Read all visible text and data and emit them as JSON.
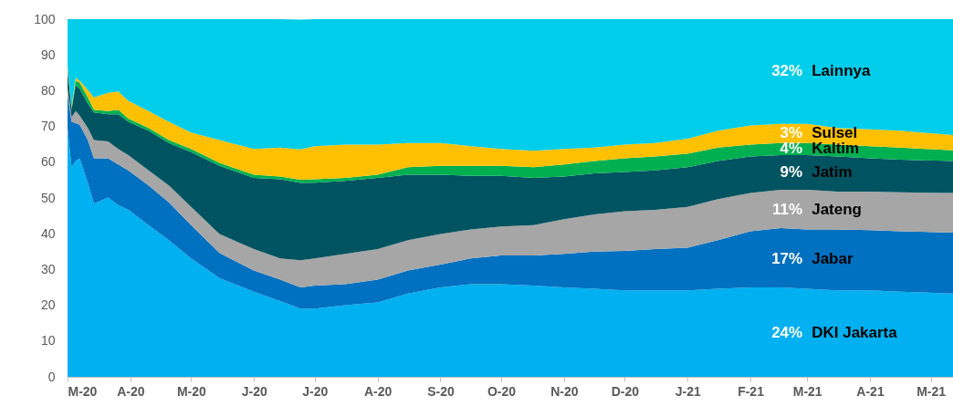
{
  "chart_data": {
    "type": "area",
    "stacked": true,
    "x": [
      "2020-03-01",
      "2020-03-03",
      "2020-03-05",
      "2020-03-07",
      "2020-03-11",
      "2020-03-14",
      "2020-03-21",
      "2020-03-26",
      "2020-03-31",
      "2020-04-10",
      "2020-04-20",
      "2020-05-01",
      "2020-05-15",
      "2020-06-01",
      "2020-06-14",
      "2020-06-24",
      "2020-07-01",
      "2020-07-16",
      "2020-08-01",
      "2020-08-16",
      "2020-09-01",
      "2020-09-16",
      "2020-10-01",
      "2020-10-17",
      "2020-11-01",
      "2020-11-16",
      "2020-12-01",
      "2020-12-16",
      "2021-01-01",
      "2021-01-16",
      "2021-02-01",
      "2021-02-16",
      "2021-03-01",
      "2021-03-16",
      "2021-04-01",
      "2021-04-16",
      "2021-05-12"
    ],
    "series": [
      {
        "name": "DKI Jakarta",
        "color": "#00b0f0",
        "values": [
          69.6,
          58.6,
          60.3,
          61.1,
          54.3,
          48.4,
          50.1,
          48,
          46.7,
          42.4,
          38.2,
          33.1,
          27.6,
          23.8,
          21.2,
          19.1,
          19.1,
          20,
          20.8,
          23.3,
          25,
          25.9,
          25.9,
          25.5,
          25,
          24.6,
          24.2,
          24.2,
          24.2,
          24.6,
          25,
          25,
          24.6,
          24.2,
          24.2,
          23.8,
          23.3
        ]
      },
      {
        "name": "Jabar",
        "color": "#0070c0",
        "values": [
          9.4,
          12.7,
          10.6,
          9.4,
          11.9,
          12.7,
          11,
          11.4,
          11,
          11.1,
          10.6,
          9.3,
          7,
          5.9,
          6,
          5.9,
          6.4,
          5.9,
          6.4,
          6.4,
          6.4,
          7.2,
          8,
          8.4,
          9.4,
          10.4,
          11,
          11.5,
          11.9,
          13.6,
          15.7,
          16.6,
          16.6,
          17,
          16.8,
          16.9,
          17
        ]
      },
      {
        "name": "Jateng",
        "color": "#a6a6a6",
        "values": [
          1.6,
          1.3,
          3.4,
          2.5,
          3.4,
          5.1,
          4.7,
          4.3,
          4.3,
          4.2,
          4.7,
          5.1,
          5.3,
          6,
          5.9,
          7.6,
          7.6,
          8.5,
          8.5,
          8.5,
          8.5,
          8.1,
          8.1,
          8.5,
          9.7,
          10.4,
          11.1,
          11,
          11.4,
          11.5,
          10.7,
          10.7,
          11.1,
          10.6,
          10.8,
          10.9,
          11.1
        ]
      },
      {
        "name": "Jatim",
        "color": "#005360",
        "values": [
          5.1,
          2.1,
          7.2,
          7.6,
          6.8,
          7.7,
          7.6,
          9.7,
          9.3,
          11.1,
          11.9,
          15.3,
          19.1,
          19.9,
          22.1,
          21.6,
          21.2,
          20.4,
          19.9,
          18.3,
          16.6,
          15,
          14.2,
          13.2,
          11.9,
          11.5,
          11,
          11,
          11.1,
          10.6,
          10.2,
          9.7,
          9.7,
          9.8,
          9.3,
          9.1,
          8.9
        ]
      },
      {
        "name": "Kaltim",
        "color": "#00b050",
        "values": [
          0.5,
          0.4,
          1.3,
          1.7,
          1.7,
          0.8,
          0.9,
          1.3,
          0.9,
          0.8,
          0.8,
          0.9,
          0.8,
          0.9,
          0.8,
          0.9,
          0.9,
          0.8,
          0.9,
          2.1,
          2.5,
          2.8,
          2.8,
          3,
          3.4,
          3.4,
          3.8,
          3.9,
          3.8,
          3.8,
          3.3,
          3.4,
          3.4,
          3.3,
          3.4,
          3.4,
          3
        ]
      },
      {
        "name": "Sulsel",
        "color": "#ffc000",
        "values": [
          0.8,
          0.5,
          0.8,
          0.5,
          2.1,
          3.4,
          5.1,
          5.1,
          5,
          4.7,
          5.1,
          4.6,
          6.4,
          7.2,
          8.1,
          8.5,
          9.3,
          9.3,
          8.4,
          6.8,
          6.4,
          5.5,
          4.7,
          4.6,
          4.3,
          3.8,
          3.8,
          3.8,
          4.2,
          4.7,
          5.4,
          5.3,
          5.3,
          4.7,
          4.7,
          4.7,
          4.3
        ]
      },
      {
        "name": "Lainnya",
        "color": "#00cdea",
        "values": [
          13,
          24.4,
          16.4,
          17.2,
          19.8,
          21.9,
          20.6,
          20.2,
          22.8,
          25.7,
          28.7,
          31.7,
          33.8,
          36.3,
          35.9,
          36.3,
          35.5,
          35.1,
          35.1,
          34.6,
          34.6,
          35.5,
          36.3,
          36.8,
          36.3,
          35.9,
          35.1,
          34.6,
          33.4,
          31.2,
          29.7,
          29.3,
          29.3,
          30.4,
          30.8,
          31.2,
          32.4
        ]
      }
    ],
    "annotations": [
      "24%",
      "17%",
      "11%",
      "9%",
      "4%",
      "3%",
      "32%"
    ],
    "xlim": [
      "2020-03-01",
      "2021-05-12"
    ],
    "xticks": [
      {
        "value": "2020-03-01",
        "label": "M-20"
      },
      {
        "value": "2020-04-01",
        "label": "A-20"
      },
      {
        "value": "2020-05-01",
        "label": "M-20"
      },
      {
        "value": "2020-06-01",
        "label": "J-20"
      },
      {
        "value": "2020-07-01",
        "label": "J-20"
      },
      {
        "value": "2020-08-01",
        "label": "A-20"
      },
      {
        "value": "2020-09-01",
        "label": "S-20"
      },
      {
        "value": "2020-10-01",
        "label": "O-20"
      },
      {
        "value": "2020-11-01",
        "label": "N-20"
      },
      {
        "value": "2020-12-01",
        "label": "D-20"
      },
      {
        "value": "2021-01-01",
        "label": "J-21"
      },
      {
        "value": "2021-02-01",
        "label": "F-21"
      },
      {
        "value": "2021-03-01",
        "label": "M-21"
      },
      {
        "value": "2021-04-01",
        "label": "A-21"
      },
      {
        "value": "2021-05-01",
        "label": "M-21"
      }
    ],
    "ylim": [
      0,
      100
    ],
    "yticks": [
      0,
      10,
      20,
      30,
      40,
      50,
      60,
      70,
      80,
      90,
      100
    ]
  }
}
